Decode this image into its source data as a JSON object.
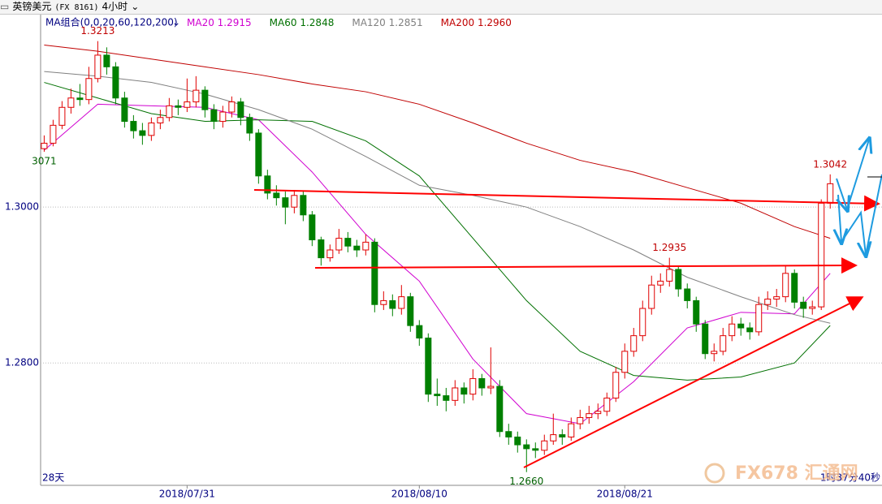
{
  "chart_data": {
    "type": "candlestick",
    "title": "英镑美元",
    "code": "(FX 8161)",
    "period": "4小时",
    "indicator": "MA组合(0,0,20,60,120,200)",
    "ylim": [
      1.2643,
      1.3247
    ],
    "yticks": [
      {
        "value": 1.3,
        "label": "1.3000"
      },
      {
        "value": 1.28,
        "label": "1.2800"
      }
    ],
    "xlim": [
      -0.4,
      93.8
    ],
    "xticks": [
      {
        "value": 16,
        "label": "2018/07/31"
      },
      {
        "value": 42,
        "label": "2018/08/10"
      },
      {
        "value": 65,
        "label": "2018/08/21"
      }
    ],
    "grid": true,
    "up_color": "#e00000",
    "down_color": "#008000",
    "candles": [
      [
        1.3075,
        1.3092,
        1.3071,
        1.3082
      ],
      [
        1.3082,
        1.3112,
        1.3078,
        1.3105
      ],
      [
        1.3105,
        1.3136,
        1.31,
        1.3128
      ],
      [
        1.3128,
        1.3152,
        1.312,
        1.314
      ],
      [
        1.314,
        1.3158,
        1.313,
        1.3138
      ],
      [
        1.3138,
        1.318,
        1.3132,
        1.3165
      ],
      [
        1.3165,
        1.3213,
        1.316,
        1.3195
      ],
      [
        1.3195,
        1.3205,
        1.317,
        1.318
      ],
      [
        1.318,
        1.3186,
        1.3132,
        1.314
      ],
      [
        1.314,
        1.3148,
        1.3102,
        1.311
      ],
      [
        1.311,
        1.3118,
        1.3088,
        1.3098
      ],
      [
        1.3098,
        1.3108,
        1.308,
        1.3092
      ],
      [
        1.3092,
        1.3115,
        1.3085,
        1.3108
      ],
      [
        1.3108,
        1.3125,
        1.31,
        1.3115
      ],
      [
        1.3115,
        1.314,
        1.311,
        1.313
      ],
      [
        1.313,
        1.3138,
        1.3118,
        1.3128
      ],
      [
        1.3128,
        1.3165,
        1.3122,
        1.3135
      ],
      [
        1.3135,
        1.3168,
        1.3128,
        1.315
      ],
      [
        1.315,
        1.3155,
        1.3115,
        1.3125
      ],
      [
        1.3125,
        1.3132,
        1.31,
        1.311
      ],
      [
        1.311,
        1.313,
        1.3102,
        1.3122
      ],
      [
        1.3122,
        1.3142,
        1.3115,
        1.3135
      ],
      [
        1.3135,
        1.314,
        1.3105,
        1.3115
      ],
      [
        1.3115,
        1.312,
        1.3085,
        1.3095
      ],
      [
        1.3095,
        1.31,
        1.303,
        1.304
      ],
      [
        1.304,
        1.3048,
        1.301,
        1.3018
      ],
      [
        1.3018,
        1.3028,
        1.3002,
        1.3012
      ],
      [
        1.3012,
        1.302,
        1.2978,
        1.3
      ],
      [
        1.3,
        1.3022,
        1.2992,
        1.3015
      ],
      [
        1.3015,
        1.302,
        1.2982,
        1.299
      ],
      [
        1.299,
        1.2995,
        1.295,
        1.2958
      ],
      [
        1.2958,
        1.2962,
        1.2925,
        1.2935
      ],
      [
        1.2935,
        1.2952,
        1.293,
        1.2945
      ],
      [
        1.2945,
        1.2972,
        1.294,
        1.296
      ],
      [
        1.296,
        1.2968,
        1.2942,
        1.295
      ],
      [
        1.295,
        1.2958,
        1.2936,
        1.2945
      ],
      [
        1.2945,
        1.2965,
        1.2938,
        1.2955
      ],
      [
        1.2955,
        1.296,
        1.2865,
        1.2875
      ],
      [
        1.2875,
        1.2892,
        1.2868,
        1.288
      ],
      [
        1.288,
        1.2888,
        1.286,
        1.287
      ],
      [
        1.287,
        1.29,
        1.2862,
        1.2885
      ],
      [
        1.2885,
        1.289,
        1.284,
        1.2848
      ],
      [
        1.2848,
        1.2855,
        1.2822,
        1.2832
      ],
      [
        1.2832,
        1.2838,
        1.275,
        1.276
      ],
      [
        1.276,
        1.278,
        1.2745,
        1.2758
      ],
      [
        1.2758,
        1.2768,
        1.2738,
        1.2752
      ],
      [
        1.2752,
        1.2778,
        1.2745,
        1.2768
      ],
      [
        1.2768,
        1.2775,
        1.2748,
        1.276
      ],
      [
        1.276,
        1.2792,
        1.2752,
        1.278
      ],
      [
        1.278,
        1.2786,
        1.2758,
        1.2768
      ],
      [
        1.2768,
        1.282,
        1.276,
        1.277
      ],
      [
        1.277,
        1.2778,
        1.2705,
        1.2712
      ],
      [
        1.2712,
        1.2722,
        1.2695,
        1.2705
      ],
      [
        1.2705,
        1.2712,
        1.2685,
        1.2695
      ],
      [
        1.2695,
        1.2702,
        1.266,
        1.269
      ],
      [
        1.269,
        1.2698,
        1.2678,
        1.2688
      ],
      [
        1.2688,
        1.2708,
        1.2682,
        1.27
      ],
      [
        1.27,
        1.2735,
        1.2695,
        1.2708
      ],
      [
        1.2708,
        1.2715,
        1.2695,
        1.2705
      ],
      [
        1.2705,
        1.273,
        1.27,
        1.2722
      ],
      [
        1.2722,
        1.274,
        1.2715,
        1.273
      ],
      [
        1.273,
        1.2745,
        1.2722,
        1.2735
      ],
      [
        1.2735,
        1.2748,
        1.2728,
        1.2738
      ],
      [
        1.2738,
        1.2762,
        1.2732,
        1.2755
      ],
      [
        1.2755,
        1.2795,
        1.275,
        1.2788
      ],
      [
        1.2788,
        1.2825,
        1.278,
        1.2815
      ],
      [
        1.2815,
        1.2845,
        1.2808,
        1.2835
      ],
      [
        1.2835,
        1.288,
        1.2828,
        1.287
      ],
      [
        1.287,
        1.2912,
        1.2862,
        1.29
      ],
      [
        1.29,
        1.2915,
        1.289,
        1.2905
      ],
      [
        1.2905,
        1.2935,
        1.2898,
        1.292
      ],
      [
        1.292,
        1.2925,
        1.2885,
        1.2895
      ],
      [
        1.2895,
        1.2902,
        1.287,
        1.288
      ],
      [
        1.288,
        1.2885,
        1.284,
        1.285
      ],
      [
        1.285,
        1.2855,
        1.2805,
        1.2812
      ],
      [
        1.2812,
        1.2825,
        1.2802,
        1.2815
      ],
      [
        1.2815,
        1.2845,
        1.281,
        1.2835
      ],
      [
        1.2835,
        1.286,
        1.2828,
        1.285
      ],
      [
        1.285,
        1.2858,
        1.2835,
        1.2845
      ],
      [
        1.2845,
        1.2852,
        1.283,
        1.284
      ],
      [
        1.284,
        1.2885,
        1.2835,
        1.2875
      ],
      [
        1.2875,
        1.2892,
        1.2868,
        1.2882
      ],
      [
        1.2882,
        1.2895,
        1.2872,
        1.2885
      ],
      [
        1.2885,
        1.2925,
        1.2878,
        1.2915
      ],
      [
        1.2915,
        1.292,
        1.287,
        1.2878
      ],
      [
        1.2878,
        1.2885,
        1.2858,
        1.287
      ],
      [
        1.287,
        1.288,
        1.2862,
        1.2872
      ],
      [
        1.2872,
        1.301,
        1.2868,
        1.3005
      ],
      [
        1.3005,
        1.3042,
        1.2998,
        1.303
      ]
    ],
    "series": [
      {
        "name": "MA20",
        "color": "#d000d0",
        "legend_value": "1.2915",
        "x": [
          0,
          6,
          12,
          18,
          24,
          30,
          36,
          42,
          48,
          54,
          60,
          66,
          72,
          78,
          84,
          88
        ],
        "values": [
          1.3073,
          1.3132,
          1.313,
          1.3128,
          1.3112,
          1.3045,
          1.2965,
          1.2905,
          1.2805,
          1.2735,
          1.2722,
          1.2776,
          1.2845,
          1.2865,
          1.2863,
          1.2915
        ]
      },
      {
        "name": "MA60",
        "color": "#007000",
        "legend_value": "1.2848",
        "x": [
          0,
          6,
          12,
          18,
          24,
          30,
          36,
          42,
          48,
          54,
          60,
          66,
          72,
          78,
          84,
          88
        ],
        "values": [
          1.316,
          1.314,
          1.312,
          1.311,
          1.3112,
          1.311,
          1.3085,
          1.304,
          1.296,
          1.288,
          1.2815,
          1.2784,
          1.2778,
          1.2782,
          1.28,
          1.2848
        ]
      },
      {
        "name": "MA120",
        "color": "#808080",
        "legend_value": "1.2851",
        "x": [
          0,
          6,
          12,
          18,
          24,
          30,
          36,
          42,
          48,
          54,
          60,
          66,
          72,
          78,
          84,
          88
        ],
        "values": [
          1.3174,
          1.3168,
          1.316,
          1.3145,
          1.3125,
          1.31,
          1.3065,
          1.3028,
          1.3015,
          1.3,
          1.2975,
          1.2945,
          1.291,
          1.2885,
          1.2862,
          1.2851
        ]
      },
      {
        "name": "MA200",
        "color": "#c00000",
        "legend_value": "1.2960",
        "x": [
          0,
          6,
          12,
          18,
          24,
          30,
          36,
          42,
          48,
          54,
          60,
          66,
          72,
          78,
          84,
          88
        ],
        "values": [
          1.3208,
          1.32,
          1.319,
          1.318,
          1.317,
          1.3158,
          1.3148,
          1.3132,
          1.3108,
          1.3082,
          1.306,
          1.3045,
          1.3025,
          1.3005,
          1.2975,
          1.296
        ]
      }
    ],
    "annotations": [
      {
        "x": 6,
        "value": 1.3213,
        "label": "1.3213"
      },
      {
        "x": 0,
        "value": 1.3071,
        "label": "3071"
      },
      {
        "x": 70,
        "value": 1.2935,
        "label": "1.2935"
      },
      {
        "x": 54,
        "value": 1.266,
        "label": "1.2660"
      },
      {
        "x": 88,
        "value": 1.3042,
        "label": "1.3042"
      }
    ],
    "left_footer": "28天",
    "right_footer": "1时37分40秒",
    "watermark": "FX678 汇通网"
  }
}
